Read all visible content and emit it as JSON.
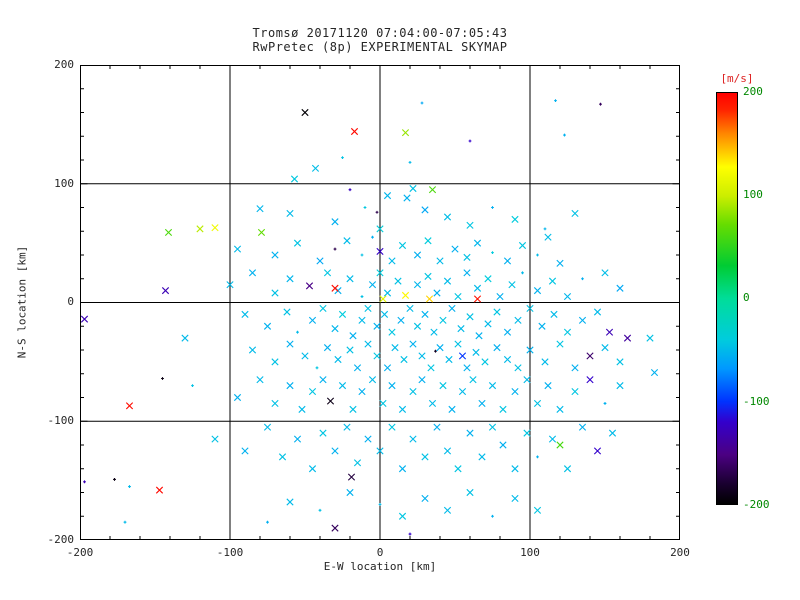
{
  "colors": {
    "text": "#262626",
    "background": "#ffffff",
    "axis": "#000000",
    "colorbar_label": "#dd2222",
    "colorbar_ticks": "#008800"
  },
  "chart_data": {
    "type": "scatter",
    "title": "Tromsø 20171120 07:04:00-07:05:43",
    "subtitle": "RwPretec (8p) EXPERIMENTAL SKYMAP",
    "xlabel": "E-W location [km]",
    "ylabel": "N-S location [km]",
    "xlim": [
      -200,
      200
    ],
    "ylim": [
      -200,
      200
    ],
    "xticks": [
      -200,
      -100,
      0,
      100,
      200
    ],
    "yticks": [
      -200,
      -100,
      0,
      100,
      200
    ],
    "xtick_labels": [
      "-200",
      "-100",
      "0",
      "100",
      "200"
    ],
    "ytick_labels": [
      "200",
      "100",
      "0",
      "-100",
      "-200"
    ],
    "grid_x": [
      -100,
      0,
      100
    ],
    "grid_y": [
      -100,
      0,
      100
    ],
    "minor_tick_step": 20,
    "grid": true,
    "colorbar": {
      "label": "[m/s]",
      "min": -200,
      "max": 200,
      "tick_labels": [
        "200",
        "100",
        "0",
        "-100",
        "-200"
      ],
      "stops": [
        {
          "t": 0.0,
          "c": "#000000"
        },
        {
          "t": 0.05,
          "c": "#1a0030"
        },
        {
          "t": 0.12,
          "c": "#4b0082"
        },
        {
          "t": 0.2,
          "c": "#3300cc"
        },
        {
          "t": 0.25,
          "c": "#0033ff"
        },
        {
          "t": 0.33,
          "c": "#0099ff"
        },
        {
          "t": 0.4,
          "c": "#00ccdd"
        },
        {
          "t": 0.5,
          "c": "#00dd99"
        },
        {
          "t": 0.58,
          "c": "#00cc33"
        },
        {
          "t": 0.68,
          "c": "#66dd00"
        },
        {
          "t": 0.75,
          "c": "#ccee00"
        },
        {
          "t": 0.82,
          "c": "#ffff00"
        },
        {
          "t": 0.9,
          "c": "#ff8800"
        },
        {
          "t": 0.96,
          "c": "#ff2200"
        },
        {
          "t": 1.0,
          "c": "#ff0000"
        }
      ]
    },
    "points_format": [
      "x_km",
      "y_km",
      "velocity_ms",
      "marker"
    ],
    "points": [
      [
        -50,
        160,
        -198,
        "x"
      ],
      [
        -17,
        144,
        196,
        "x"
      ],
      [
        17,
        143,
        85,
        "x"
      ],
      [
        28,
        168,
        -60,
        "+"
      ],
      [
        117,
        170,
        -55,
        "+"
      ],
      [
        147,
        167,
        -165,
        "+"
      ],
      [
        -43,
        113,
        -48,
        "x"
      ],
      [
        -57,
        104,
        -42,
        "x"
      ],
      [
        123,
        141,
        -55,
        "+"
      ],
      [
        60,
        136,
        -120,
        "+"
      ],
      [
        20,
        118,
        -50,
        "+"
      ],
      [
        -25,
        122,
        -45,
        "+"
      ],
      [
        -20,
        95,
        -125,
        "+"
      ],
      [
        22,
        96,
        -46,
        "x"
      ],
      [
        35,
        95,
        62,
        "x"
      ],
      [
        18,
        88,
        -55,
        "x"
      ],
      [
        -2,
        76,
        -170,
        "+"
      ],
      [
        -80,
        79,
        -52,
        "x"
      ],
      [
        -79,
        59,
        70,
        "x"
      ],
      [
        -110,
        63,
        120,
        "x"
      ],
      [
        -141,
        59,
        62,
        "x"
      ],
      [
        -60,
        75,
        -50,
        "x"
      ],
      [
        -30,
        68,
        -56,
        "x"
      ],
      [
        -10,
        80,
        -42,
        "+"
      ],
      [
        5,
        90,
        -52,
        "x"
      ],
      [
        45,
        72,
        -48,
        "x"
      ],
      [
        60,
        65,
        -44,
        "x"
      ],
      [
        75,
        80,
        -56,
        "+"
      ],
      [
        90,
        70,
        -40,
        "x"
      ],
      [
        110,
        62,
        -52,
        "+"
      ],
      [
        130,
        75,
        -46,
        "x"
      ],
      [
        -120,
        62,
        95,
        "x"
      ],
      [
        0,
        62,
        -38,
        "x"
      ],
      [
        30,
        78,
        -60,
        "x"
      ],
      [
        -95,
        45,
        -50,
        "x"
      ],
      [
        -70,
        40,
        -55,
        "x"
      ],
      [
        -55,
        50,
        -45,
        "x"
      ],
      [
        -40,
        35,
        -60,
        "x"
      ],
      [
        -22,
        52,
        -50,
        "x"
      ],
      [
        -12,
        40,
        -46,
        "+"
      ],
      [
        -5,
        55,
        -56,
        "+"
      ],
      [
        0,
        43,
        -122,
        "x"
      ],
      [
        8,
        35,
        -50,
        "x"
      ],
      [
        15,
        48,
        -44,
        "x"
      ],
      [
        25,
        40,
        -56,
        "x"
      ],
      [
        32,
        52,
        -40,
        "x"
      ],
      [
        40,
        35,
        -50,
        "x"
      ],
      [
        50,
        45,
        -56,
        "x"
      ],
      [
        58,
        38,
        -46,
        "x"
      ],
      [
        65,
        50,
        -52,
        "x"
      ],
      [
        75,
        42,
        -40,
        "+"
      ],
      [
        85,
        35,
        -56,
        "x"
      ],
      [
        95,
        48,
        -44,
        "x"
      ],
      [
        105,
        40,
        -50,
        "+"
      ],
      [
        120,
        33,
        -56,
        "x"
      ],
      [
        -30,
        45,
        -170,
        "+"
      ],
      [
        112,
        55,
        -48,
        "x"
      ],
      [
        -143,
        10,
        -130,
        "x"
      ],
      [
        -100,
        15,
        -50,
        "x"
      ],
      [
        -85,
        25,
        -55,
        "x"
      ],
      [
        -70,
        8,
        -46,
        "x"
      ],
      [
        -60,
        20,
        -52,
        "x"
      ],
      [
        -47,
        14,
        -150,
        "x"
      ],
      [
        -35,
        25,
        -44,
        "x"
      ],
      [
        -28,
        10,
        -56,
        "x"
      ],
      [
        -20,
        20,
        -50,
        "x"
      ],
      [
        -12,
        5,
        -46,
        "+"
      ],
      [
        -5,
        15,
        -55,
        "x"
      ],
      [
        0,
        25,
        -40,
        "x"
      ],
      [
        5,
        8,
        -50,
        "x"
      ],
      [
        12,
        18,
        -46,
        "x"
      ],
      [
        17,
        6,
        130,
        "x"
      ],
      [
        25,
        15,
        -52,
        "x"
      ],
      [
        32,
        22,
        -44,
        "x"
      ],
      [
        33,
        3,
        140,
        "x"
      ],
      [
        38,
        8,
        -56,
        "x"
      ],
      [
        45,
        18,
        -50,
        "x"
      ],
      [
        52,
        5,
        -44,
        "x"
      ],
      [
        58,
        25,
        -56,
        "x"
      ],
      [
        65,
        12,
        -50,
        "x"
      ],
      [
        65,
        3,
        192,
        "x"
      ],
      [
        72,
        20,
        -40,
        "x"
      ],
      [
        80,
        5,
        -56,
        "x"
      ],
      [
        88,
        15,
        -46,
        "x"
      ],
      [
        95,
        25,
        -50,
        "+"
      ],
      [
        105,
        10,
        -55,
        "x"
      ],
      [
        115,
        18,
        -44,
        "x"
      ],
      [
        125,
        5,
        -52,
        "x"
      ],
      [
        135,
        20,
        -56,
        "+"
      ],
      [
        -30,
        12,
        194,
        "x"
      ],
      [
        2,
        3,
        112,
        "x"
      ],
      [
        150,
        25,
        -48,
        "x"
      ],
      [
        160,
        12,
        -60,
        "x"
      ],
      [
        -90,
        -10,
        -50,
        "x"
      ],
      [
        -75,
        -20,
        -55,
        "x"
      ],
      [
        -62,
        -8,
        -46,
        "x"
      ],
      [
        -55,
        -25,
        -50,
        "+"
      ],
      [
        -45,
        -15,
        -56,
        "x"
      ],
      [
        -38,
        -5,
        -44,
        "x"
      ],
      [
        -30,
        -22,
        -52,
        "x"
      ],
      [
        -25,
        -10,
        -40,
        "x"
      ],
      [
        -18,
        -28,
        -56,
        "x"
      ],
      [
        -12,
        -15,
        -50,
        "x"
      ],
      [
        -8,
        -5,
        -46,
        "x"
      ],
      [
        -2,
        -20,
        -55,
        "x"
      ],
      [
        3,
        -10,
        -50,
        "x"
      ],
      [
        8,
        -25,
        -44,
        "x"
      ],
      [
        14,
        -15,
        -56,
        "x"
      ],
      [
        20,
        -5,
        -50,
        "x"
      ],
      [
        25,
        -20,
        -46,
        "x"
      ],
      [
        30,
        -10,
        -55,
        "x"
      ],
      [
        36,
        -25,
        -50,
        "x"
      ],
      [
        42,
        -15,
        -44,
        "x"
      ],
      [
        48,
        -5,
        -56,
        "x"
      ],
      [
        54,
        -22,
        -50,
        "x"
      ],
      [
        60,
        -12,
        -46,
        "x"
      ],
      [
        66,
        -28,
        -55,
        "x"
      ],
      [
        72,
        -18,
        -50,
        "x"
      ],
      [
        78,
        -8,
        -44,
        "x"
      ],
      [
        85,
        -25,
        -56,
        "x"
      ],
      [
        92,
        -15,
        -50,
        "x"
      ],
      [
        100,
        -5,
        -46,
        "x"
      ],
      [
        108,
        -20,
        -55,
        "x"
      ],
      [
        116,
        -10,
        -50,
        "x"
      ],
      [
        125,
        -25,
        -44,
        "x"
      ],
      [
        135,
        -15,
        -56,
        "x"
      ],
      [
        145,
        -8,
        -50,
        "x"
      ],
      [
        153,
        -25,
        -130,
        "x"
      ],
      [
        165,
        -30,
        -140,
        "x"
      ],
      [
        180,
        -30,
        -46,
        "x"
      ],
      [
        -197,
        -14,
        -130,
        "x"
      ],
      [
        -130,
        -30,
        -50,
        "x"
      ],
      [
        -85,
        -40,
        -50,
        "x"
      ],
      [
        -70,
        -50,
        -46,
        "x"
      ],
      [
        -60,
        -35,
        -56,
        "x"
      ],
      [
        -50,
        -45,
        -50,
        "x"
      ],
      [
        -42,
        -55,
        -44,
        "+"
      ],
      [
        -35,
        -38,
        -56,
        "x"
      ],
      [
        -28,
        -48,
        -50,
        "x"
      ],
      [
        -20,
        -40,
        -46,
        "x"
      ],
      [
        -15,
        -55,
        -55,
        "x"
      ],
      [
        -8,
        -35,
        -50,
        "x"
      ],
      [
        -2,
        -45,
        -44,
        "x"
      ],
      [
        5,
        -55,
        -56,
        "x"
      ],
      [
        10,
        -38,
        -50,
        "x"
      ],
      [
        16,
        -48,
        -46,
        "x"
      ],
      [
        22,
        -35,
        -55,
        "x"
      ],
      [
        28,
        -45,
        -50,
        "x"
      ],
      [
        34,
        -55,
        -44,
        "x"
      ],
      [
        37,
        -41,
        -186,
        "+"
      ],
      [
        40,
        -38,
        -56,
        "x"
      ],
      [
        46,
        -48,
        -50,
        "x"
      ],
      [
        52,
        -35,
        -46,
        "x"
      ],
      [
        55,
        -45,
        -100,
        "x"
      ],
      [
        58,
        -55,
        -55,
        "x"
      ],
      [
        64,
        -42,
        -50,
        "x"
      ],
      [
        70,
        -50,
        -44,
        "x"
      ],
      [
        78,
        -38,
        -56,
        "x"
      ],
      [
        85,
        -48,
        -50,
        "x"
      ],
      [
        92,
        -55,
        -46,
        "x"
      ],
      [
        100,
        -40,
        -55,
        "x"
      ],
      [
        110,
        -50,
        -50,
        "x"
      ],
      [
        120,
        -35,
        -44,
        "x"
      ],
      [
        130,
        -55,
        -56,
        "x"
      ],
      [
        140,
        -45,
        -160,
        "x"
      ],
      [
        150,
        -38,
        -50,
        "x"
      ],
      [
        160,
        -50,
        -46,
        "x"
      ],
      [
        183,
        -59,
        -55,
        "x"
      ],
      [
        -125,
        -70,
        -46,
        "+"
      ],
      [
        -145,
        -64,
        -192,
        "+"
      ],
      [
        -167,
        -87,
        195,
        "x"
      ],
      [
        -95,
        -80,
        -55,
        "x"
      ],
      [
        -80,
        -65,
        -50,
        "x"
      ],
      [
        -70,
        -85,
        -46,
        "x"
      ],
      [
        -60,
        -70,
        -56,
        "x"
      ],
      [
        -52,
        -90,
        -50,
        "x"
      ],
      [
        -45,
        -75,
        -44,
        "x"
      ],
      [
        -38,
        -65,
        -55,
        "x"
      ],
      [
        -33,
        -83,
        -190,
        "x"
      ],
      [
        -25,
        -70,
        -50,
        "x"
      ],
      [
        -18,
        -90,
        -46,
        "x"
      ],
      [
        -12,
        -75,
        -56,
        "x"
      ],
      [
        -5,
        -65,
        -50,
        "x"
      ],
      [
        2,
        -85,
        -44,
        "x"
      ],
      [
        8,
        -70,
        -55,
        "x"
      ],
      [
        15,
        -90,
        -50,
        "x"
      ],
      [
        22,
        -75,
        -46,
        "x"
      ],
      [
        28,
        -65,
        -56,
        "x"
      ],
      [
        35,
        -85,
        -50,
        "x"
      ],
      [
        42,
        -70,
        -44,
        "x"
      ],
      [
        48,
        -90,
        -55,
        "x"
      ],
      [
        55,
        -75,
        -50,
        "x"
      ],
      [
        62,
        -65,
        -46,
        "x"
      ],
      [
        68,
        -85,
        -56,
        "x"
      ],
      [
        75,
        -70,
        -50,
        "x"
      ],
      [
        82,
        -90,
        -44,
        "x"
      ],
      [
        90,
        -75,
        -55,
        "x"
      ],
      [
        98,
        -65,
        -50,
        "x"
      ],
      [
        105,
        -85,
        -46,
        "x"
      ],
      [
        112,
        -70,
        -56,
        "x"
      ],
      [
        120,
        -90,
        -50,
        "x"
      ],
      [
        130,
        -75,
        -44,
        "x"
      ],
      [
        140,
        -65,
        -120,
        "x"
      ],
      [
        150,
        -85,
        -55,
        "+"
      ],
      [
        160,
        -70,
        -50,
        "x"
      ],
      [
        -110,
        -115,
        -46,
        "x"
      ],
      [
        -90,
        -125,
        -55,
        "x"
      ],
      [
        -75,
        -105,
        -50,
        "x"
      ],
      [
        -65,
        -130,
        -46,
        "x"
      ],
      [
        -55,
        -115,
        -56,
        "x"
      ],
      [
        -45,
        -140,
        -50,
        "x"
      ],
      [
        -38,
        -110,
        -44,
        "x"
      ],
      [
        -30,
        -125,
        -55,
        "x"
      ],
      [
        -22,
        -105,
        -50,
        "x"
      ],
      [
        -19,
        -147,
        -175,
        "x"
      ],
      [
        -15,
        -135,
        -46,
        "x"
      ],
      [
        -8,
        -115,
        -56,
        "x"
      ],
      [
        0,
        -125,
        -50,
        "x"
      ],
      [
        8,
        -105,
        -44,
        "x"
      ],
      [
        15,
        -140,
        -55,
        "x"
      ],
      [
        22,
        -115,
        -50,
        "x"
      ],
      [
        30,
        -130,
        -46,
        "x"
      ],
      [
        38,
        -105,
        -56,
        "x"
      ],
      [
        45,
        -125,
        -50,
        "x"
      ],
      [
        52,
        -140,
        -44,
        "x"
      ],
      [
        60,
        -110,
        -55,
        "x"
      ],
      [
        68,
        -130,
        -50,
        "x"
      ],
      [
        75,
        -105,
        -46,
        "x"
      ],
      [
        82,
        -120,
        -56,
        "x"
      ],
      [
        90,
        -140,
        -50,
        "x"
      ],
      [
        98,
        -110,
        -44,
        "x"
      ],
      [
        105,
        -130,
        -55,
        "+"
      ],
      [
        115,
        -115,
        -50,
        "x"
      ],
      [
        125,
        -140,
        -46,
        "x"
      ],
      [
        135,
        -105,
        -56,
        "x"
      ],
      [
        145,
        -125,
        -120,
        "x"
      ],
      [
        155,
        -110,
        -50,
        "x"
      ],
      [
        120,
        -120,
        60,
        "x"
      ],
      [
        -147,
        -158,
        196,
        "x"
      ],
      [
        -177,
        -149,
        -192,
        "+"
      ],
      [
        -167,
        -155,
        -50,
        "+"
      ],
      [
        -197,
        -151,
        -130,
        "+"
      ],
      [
        -60,
        -168,
        -50,
        "x"
      ],
      [
        -40,
        -175,
        -46,
        "+"
      ],
      [
        -20,
        -160,
        -55,
        "x"
      ],
      [
        0,
        -170,
        -50,
        "+"
      ],
      [
        15,
        -180,
        -44,
        "x"
      ],
      [
        30,
        -165,
        -56,
        "x"
      ],
      [
        45,
        -175,
        -50,
        "x"
      ],
      [
        60,
        -160,
        -46,
        "x"
      ],
      [
        75,
        -180,
        -55,
        "+"
      ],
      [
        90,
        -165,
        -50,
        "x"
      ],
      [
        105,
        -175,
        -44,
        "x"
      ],
      [
        -75,
        -185,
        -56,
        "+"
      ],
      [
        -170,
        -185,
        -50,
        "+"
      ],
      [
        20,
        -195,
        -120,
        "+"
      ],
      [
        -30,
        -190,
        -165,
        "x"
      ]
    ]
  }
}
